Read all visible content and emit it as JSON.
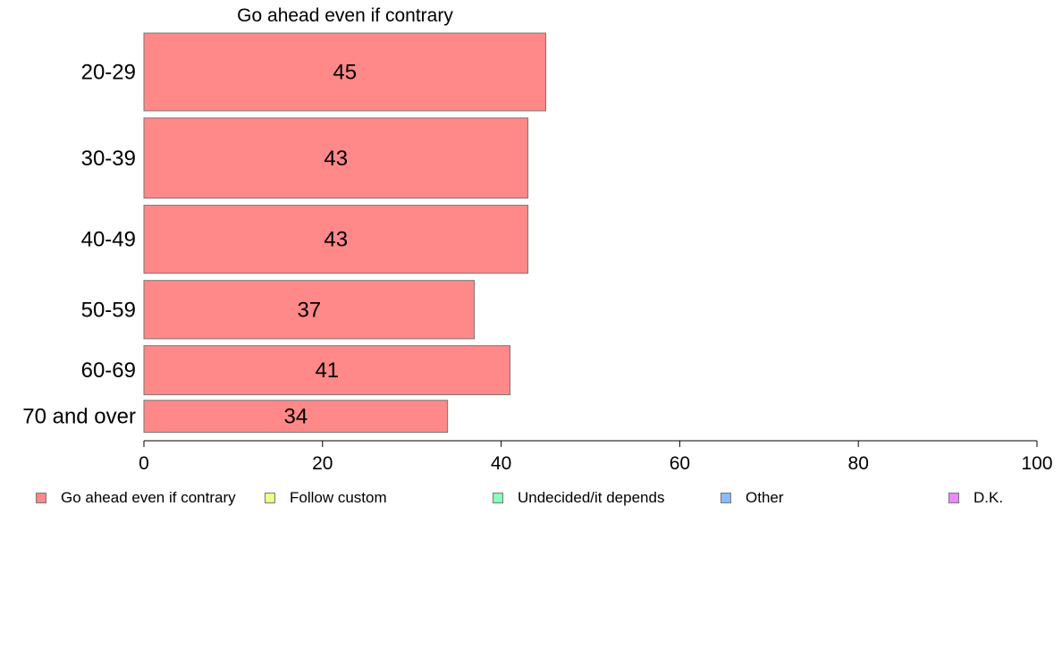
{
  "chart_data": {
    "type": "bar",
    "orientation": "horizontal",
    "title": "Go ahead even if contrary",
    "categories": [
      "20-29",
      "30-39",
      "40-49",
      "50-59",
      "60-69",
      "70 and over"
    ],
    "series": [
      {
        "name": "Go ahead even if contrary",
        "values": [
          45,
          43,
          43,
          37,
          41,
          34
        ],
        "color": "#ff8888"
      }
    ],
    "data_labels": [
      "45",
      "43",
      "43",
      "37",
      "41",
      "34"
    ],
    "category_share": [
      0.175,
      0.18,
      0.155,
      0.135,
      0.115,
      0.075
    ],
    "xlim": [
      0,
      100
    ],
    "xticks": [
      0,
      20,
      40,
      60,
      80,
      100
    ],
    "xlabel": "",
    "ylabel": "",
    "grid": false,
    "legend_position": "bottom"
  },
  "legend": {
    "items": [
      {
        "label": "Go ahead even if contrary",
        "color": "#ff8888"
      },
      {
        "label": "Follow custom",
        "color": "#eeff88"
      },
      {
        "label": "Undecided/it depends",
        "color": "#88ffbb"
      },
      {
        "label": "Other",
        "color": "#88bbff"
      },
      {
        "label": "D.K.",
        "color": "#ee88ff"
      }
    ]
  }
}
